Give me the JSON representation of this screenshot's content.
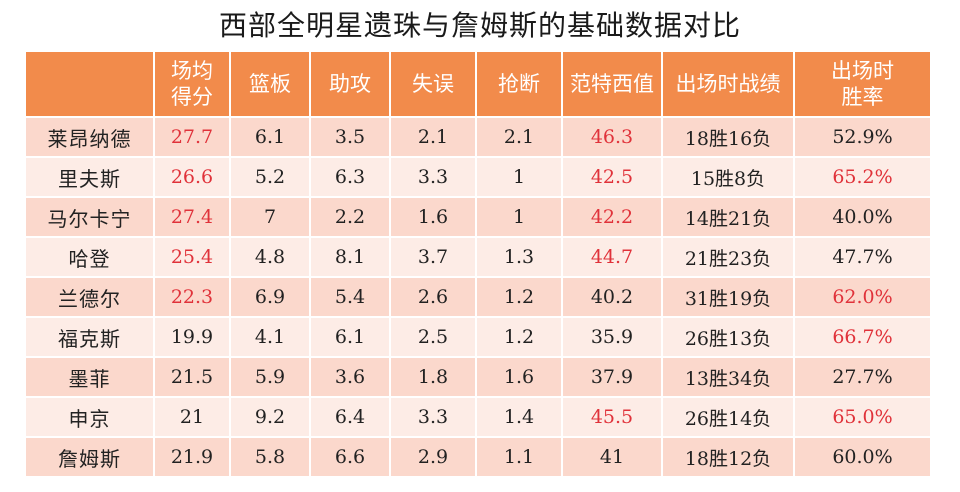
{
  "title": "西部全明星遗珠与詹姆斯的基础数据对比",
  "colors": {
    "header_bg": "#f28b4b",
    "row_dark": "#fbd8cc",
    "row_light": "#fdece6",
    "highlight": "#e0323a"
  },
  "chart_data": {
    "type": "table",
    "title": "西部全明星遗珠与詹姆斯的基础数据对比",
    "columns": [
      "",
      "场均得分",
      "篮板",
      "助攻",
      "失误",
      "抢断",
      "范特西值",
      "出场时战绩",
      "出场时胜率"
    ],
    "columns_display": [
      "",
      "场均\n得分",
      "篮板",
      "助攻",
      "失误",
      "抢断",
      "范特西值",
      "出场时战绩",
      "出场时\n胜率"
    ],
    "rows": [
      {
        "name": "莱昂纳德",
        "values": [
          "27.7",
          "6.1",
          "3.5",
          "2.1",
          "2.1",
          "46.3",
          "18胜16负",
          "52.9%"
        ],
        "highlight": [
          0,
          5
        ]
      },
      {
        "name": "里夫斯",
        "values": [
          "26.6",
          "5.2",
          "6.3",
          "3.3",
          "1",
          "42.5",
          "15胜8负",
          "65.2%"
        ],
        "highlight": [
          0,
          5,
          7
        ]
      },
      {
        "name": "马尔卡宁",
        "values": [
          "27.4",
          "7",
          "2.2",
          "1.6",
          "1",
          "42.2",
          "14胜21负",
          "40.0%"
        ],
        "highlight": [
          0,
          5
        ]
      },
      {
        "name": "哈登",
        "values": [
          "25.4",
          "4.8",
          "8.1",
          "3.7",
          "1.3",
          "44.7",
          "21胜23负",
          "47.7%"
        ],
        "highlight": [
          0,
          5
        ]
      },
      {
        "name": "兰德尔",
        "values": [
          "22.3",
          "6.9",
          "5.4",
          "2.6",
          "1.2",
          "40.2",
          "31胜19负",
          "62.0%"
        ],
        "highlight": [
          0,
          7
        ]
      },
      {
        "name": "福克斯",
        "values": [
          "19.9",
          "4.1",
          "6.1",
          "2.5",
          "1.2",
          "35.9",
          "26胜13负",
          "66.7%"
        ],
        "highlight": [
          7
        ]
      },
      {
        "name": "墨菲",
        "values": [
          "21.5",
          "5.9",
          "3.6",
          "1.8",
          "1.6",
          "37.9",
          "13胜34负",
          "27.7%"
        ],
        "highlight": []
      },
      {
        "name": "申京",
        "values": [
          "21",
          "9.2",
          "6.4",
          "3.3",
          "1.4",
          "45.5",
          "26胜14负",
          "65.0%"
        ],
        "highlight": [
          5,
          7
        ]
      },
      {
        "name": "詹姆斯",
        "values": [
          "21.9",
          "5.8",
          "6.6",
          "2.9",
          "1.1",
          "41",
          "18胜12负",
          "60.0%"
        ],
        "highlight": []
      }
    ]
  }
}
